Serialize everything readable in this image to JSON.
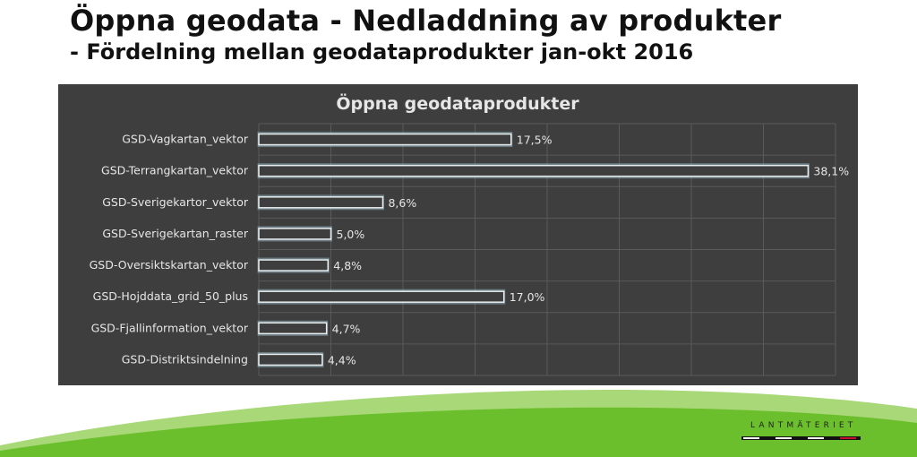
{
  "slide": {
    "title": "Öppna geodata - Nedladdning av produkter",
    "subtitle": "- Fördelning mellan geodataprodukter jan-okt 2016",
    "logo_text": "LANTMÄTERIET"
  },
  "colors": {
    "panel": "#3e3e3e",
    "bar_stroke": "#e8eef0",
    "bar_glow": "#8aa7b2",
    "text": "#e6e6e6",
    "wave_green": "#6cbf2c",
    "wave_light": "#a8d878"
  },
  "chart_data": {
    "type": "bar",
    "orientation": "horizontal",
    "title": "Öppna geodataprodukter",
    "categories": [
      "GSD-Vagkartan_vektor",
      "GSD-Terrangkartan_vektor",
      "GSD-Sverigekartor_vektor",
      "GSD-Sverigekartan_raster",
      "GSD-Oversiktskartan_vektor",
      "GSD-Hojddata_grid_50_plus",
      "GSD-Fjallinformation_vektor",
      "GSD-Distriktsindelning"
    ],
    "values": [
      17.5,
      38.1,
      8.6,
      5.0,
      4.8,
      17.0,
      4.7,
      4.4
    ],
    "data_labels": [
      "17,5%",
      "38,1%",
      "8,6%",
      "5,0%",
      "4,8%",
      "17,0%",
      "4,7%",
      "4,4%"
    ],
    "xlim": [
      0,
      40
    ],
    "grid": true,
    "legend": "none"
  }
}
